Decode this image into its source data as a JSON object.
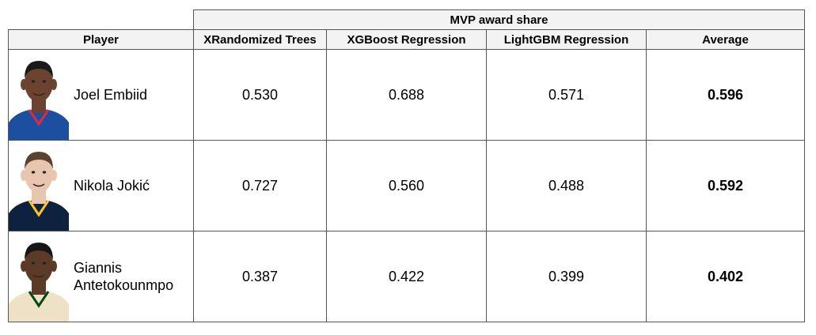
{
  "table": {
    "group_header": "MVP award share",
    "columns": [
      "Player",
      "XRandomized Trees",
      "XGBoost Regression",
      "LightGBM Regression",
      "Average"
    ],
    "rows": [
      {
        "player": "Joel Embiid",
        "photo": "joel-embiid-headshot",
        "xrt": "0.530",
        "xgb": "0.688",
        "lgbm": "0.571",
        "avg": "0.596",
        "colors": {
          "skin": "#6b4330",
          "hair": "#1a1a1a",
          "jersey": "#1d4fa0",
          "stripe": "#e02a3d"
        }
      },
      {
        "player": "Nikola Jokić",
        "photo": "nikola-jokic-headshot",
        "xrt": "0.727",
        "xgb": "0.560",
        "lgbm": "0.488",
        "avg": "0.592",
        "colors": {
          "skin": "#e7c5ae",
          "hair": "#5a4230",
          "jersey": "#0e2240",
          "stripe": "#fec524"
        }
      },
      {
        "player": "Giannis Antetokounmpo",
        "photo": "giannis-antetokounmpo-headshot",
        "xrt": "0.387",
        "xgb": "0.422",
        "lgbm": "0.399",
        "avg": "0.402",
        "colors": {
          "skin": "#5c3a28",
          "hair": "#151515",
          "jersey": "#eee1c6",
          "stripe": "#00471b"
        }
      }
    ]
  }
}
